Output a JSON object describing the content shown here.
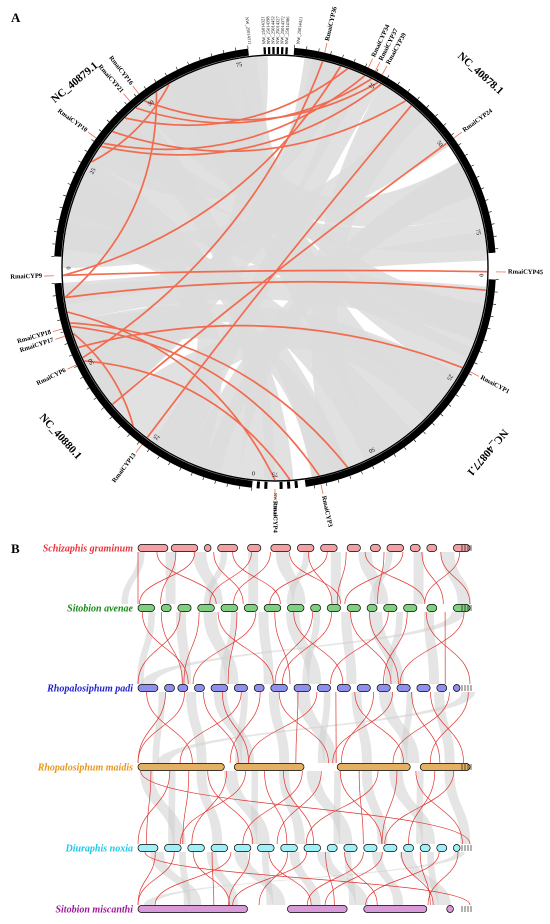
{
  "panel_a": {
    "letter": "A",
    "chromosomes": [
      {
        "name": "NC_40879.1",
        "start": 183,
        "end": 356,
        "label_angle": 320,
        "label_r": 211,
        "label_rot": -40,
        "ticks": [
          {
            "v": "0",
            "a": 271
          },
          {
            "v": "25",
            "a": 297
          },
          {
            "v": "50",
            "a": 323
          },
          {
            "v": "75",
            "a": 348
          }
        ]
      },
      {
        "name": "NC_40878.1",
        "start": 5,
        "end": 173,
        "label_angle": 42,
        "label_r": 209,
        "label_rot": 42,
        "ticks": [
          {
            "v": "25",
            "a": 28
          },
          {
            "v": "50",
            "a": 55
          },
          {
            "v": "75",
            "a": 83
          },
          {
            "v": "0",
            "a": 96
          }
        ]
      },
      {
        "name": "NC_40877.1",
        "start": 97,
        "end": 173,
        "label_angle": 133,
        "label_r": 209,
        "label_rot": -47,
        "ticks": [
          {
            "v": "50",
            "a": 165
          }
        ]
      },
      {
        "name": "NC_40880.1",
        "start": 185,
        "end": 266,
        "label_angle": 224,
        "label_r": 212,
        "label_rot": 44,
        "ticks": [
          {
            "v": "25",
            "a": 230
          },
          {
            "v": "50",
            "a": 248
          },
          {
            "v": "0",
            "a": 187
          },
          {
            "v": "75",
            "a": 176
          }
        ]
      }
    ],
    "scaffolds": [
      "NW_25014321",
      "NW_25014398",
      "NW_25014452",
      "NW_25014327",
      "NW_25014372",
      "NW_25014386"
    ],
    "minor_labels": [
      "NW_25014311",
      "NW_25014411",
      "NW_25014417"
    ],
    "genes": [
      {
        "name": "RmaiCYP36",
        "angle": 13
      },
      {
        "name": "RmaiCYP34",
        "angle": 25
      },
      {
        "name": "RmaiCYP37",
        "angle": 27
      },
      {
        "name": "RmaiCYP39",
        "angle": 29
      },
      {
        "name": "RmaiCYP24",
        "angle": 54
      },
      {
        "name": "RmaiCYP45",
        "angle": 91
      },
      {
        "name": "RmaiCYP1",
        "angle": 118
      },
      {
        "name": "RmaiCYP3",
        "angle": 168
      },
      {
        "name": "RmaiCYP4",
        "angle": 180
      },
      {
        "name": "RmaiCYP13",
        "angle": 217
      },
      {
        "name": "RmaiCYP6",
        "angle": 244
      },
      {
        "name": "RmaiCYP17",
        "angle": 252
      },
      {
        "name": "RmaiCYP18",
        "angle": 254
      },
      {
        "name": "RmaiCYP9",
        "angle": 268
      },
      {
        "name": "RmaiCYP10",
        "angle": 306
      },
      {
        "name": "RmaiCYP21",
        "angle": 319
      },
      {
        "name": "RmaiCYP16",
        "angle": 322
      }
    ]
  },
  "panel_b": {
    "letter": "B",
    "species": [
      {
        "name": "Schizaphis graminum",
        "color": "#e8343c",
        "fill": "#f2a0a4"
      },
      {
        "name": "Sitobion avenae",
        "color": "#1a8a1a",
        "fill": "#7fd07f"
      },
      {
        "name": "Rhopalosiphum padi",
        "color": "#2222cc",
        "fill": "#8f8ff0"
      },
      {
        "name": "Rhopalosiphum maidis",
        "color": "#e8961e",
        "fill": "#e3b064"
      },
      {
        "name": "Diuraphis noxia",
        "color": "#1ec8e8",
        "fill": "#9ff0f7"
      },
      {
        "name": "Sitobion miscanthi",
        "color": "#9a1a9a",
        "fill": "#d89ad8"
      }
    ]
  },
  "colors": {
    "link_highlight": "#f26b4e",
    "link_background": "#dcdcdc",
    "chromosome": "#000000"
  }
}
